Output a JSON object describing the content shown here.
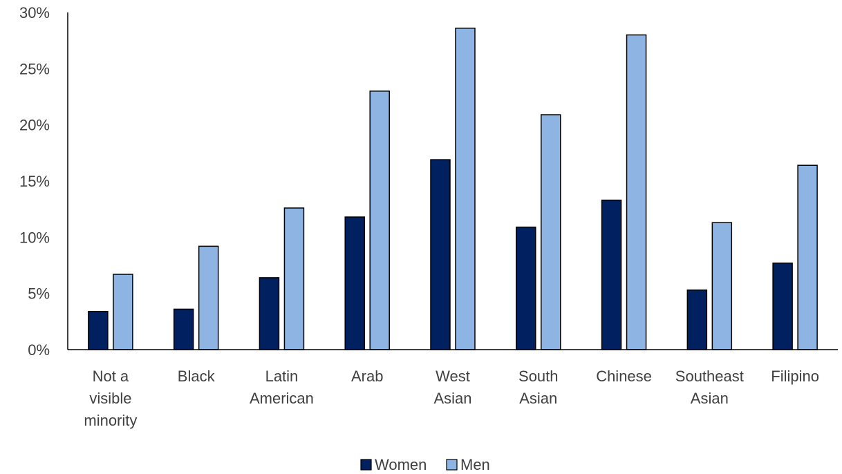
{
  "chart_data": {
    "type": "bar",
    "categories": [
      [
        "Not a",
        "visible",
        "minority"
      ],
      [
        "Black"
      ],
      [
        "Latin",
        "American"
      ],
      [
        "Arab"
      ],
      [
        "West",
        "Asian"
      ],
      [
        "South",
        "Asian"
      ],
      [
        "Chinese"
      ],
      [
        "Southeast",
        "Asian"
      ],
      [
        "Filipino"
      ]
    ],
    "series": [
      {
        "name": "Women",
        "color": "#002060",
        "values": [
          3.4,
          3.6,
          6.4,
          11.8,
          16.9,
          10.9,
          13.3,
          5.3,
          7.7
        ]
      },
      {
        "name": "Men",
        "color": "#8EB4E3",
        "values": [
          6.7,
          9.2,
          12.6,
          23.0,
          28.6,
          20.9,
          28.0,
          11.3,
          16.4
        ]
      }
    ],
    "ylim": [
      0,
      30
    ],
    "yticks": [
      "0%",
      "5%",
      "10%",
      "15%",
      "20%",
      "25%",
      "30%"
    ],
    "ytick_values": [
      0,
      5,
      10,
      15,
      20,
      25,
      30
    ],
    "title": "",
    "xlabel": "",
    "ylabel": "",
    "legend_position": "bottom-center",
    "grid": false
  }
}
